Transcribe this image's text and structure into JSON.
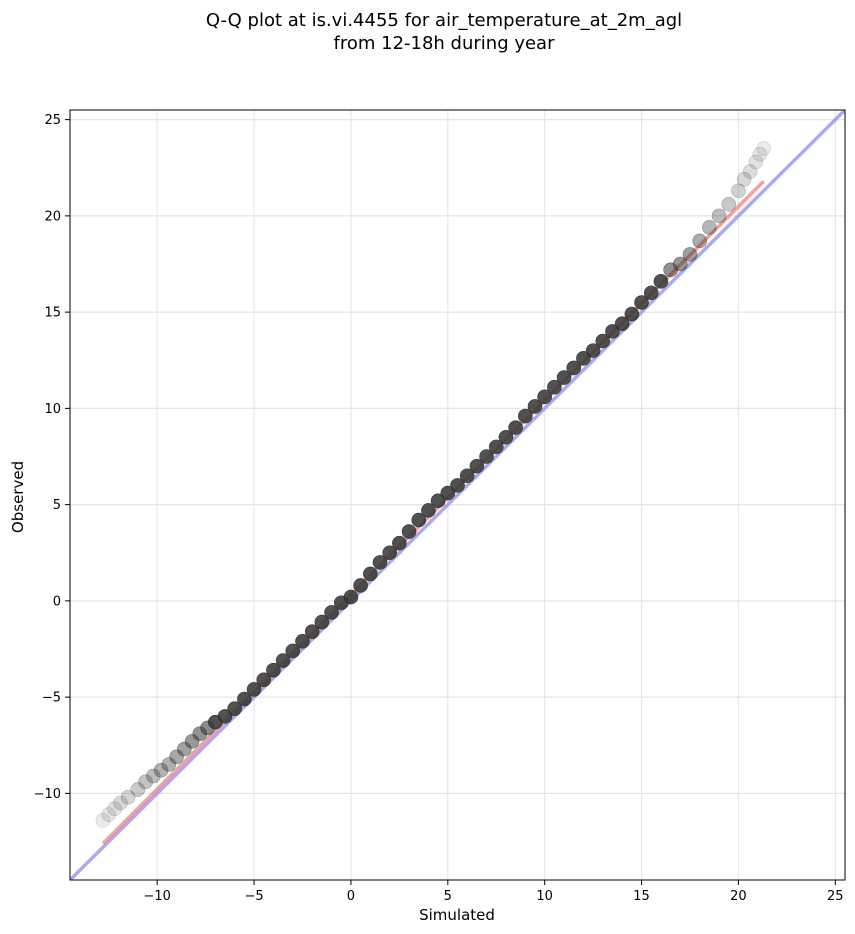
{
  "chart_data": {
    "type": "scatter",
    "title": [
      "Q-Q plot at is.vi.4455 for air_temperature_at_2m_agl",
      "from 12-18h during year"
    ],
    "xlabel": "Simulated",
    "ylabel": "Observed",
    "xlim": [
      -14.5,
      25.5
    ],
    "ylim": [
      -14.5,
      25.5
    ],
    "xticks": [
      -10,
      -5,
      0,
      5,
      10,
      15,
      20,
      25
    ],
    "yticks": [
      -10,
      -5,
      0,
      5,
      10,
      15,
      20,
      25
    ],
    "tick_labels": [
      "−10",
      "−5",
      "0",
      "5",
      "10",
      "15",
      "20",
      "25"
    ],
    "grid": true,
    "colors": {
      "points": "#333333",
      "fit_line": "#f08080",
      "identity_line": "#8c8cf0",
      "grid": "#e6e6e6"
    },
    "lines": [
      {
        "kind": "identity",
        "x": [
          -14.5,
          25.5
        ],
        "y": [
          -14.5,
          25.5
        ]
      },
      {
        "kind": "fit",
        "x": [
          -12.8,
          21.3
        ],
        "y": [
          -12.6,
          21.8
        ]
      }
    ],
    "points": {
      "x": [
        -12.8,
        -12.5,
        -12.2,
        -11.9,
        -11.5,
        -11.0,
        -10.6,
        -10.2,
        -9.8,
        -9.4,
        -9.0,
        -8.6,
        -8.2,
        -7.8,
        -7.4,
        -7.0,
        -6.5,
        -6.0,
        -5.5,
        -5.0,
        -4.5,
        -4.0,
        -3.5,
        -3.0,
        -2.5,
        -2.0,
        -1.5,
        -1.0,
        -0.5,
        0.0,
        0.5,
        1.0,
        1.5,
        2.0,
        2.5,
        3.0,
        3.5,
        4.0,
        4.5,
        5.0,
        5.5,
        6.0,
        6.5,
        7.0,
        7.5,
        8.0,
        8.5,
        9.0,
        9.5,
        10.0,
        10.5,
        11.0,
        11.5,
        12.0,
        12.5,
        13.0,
        13.5,
        14.0,
        14.5,
        15.0,
        15.5,
        16.0,
        16.5,
        17.0,
        17.5,
        18.0,
        18.5,
        19.0,
        19.5,
        20.0,
        20.3,
        20.6,
        20.9,
        21.1,
        21.3
      ],
      "y": [
        -11.4,
        -11.1,
        -10.8,
        -10.5,
        -10.2,
        -9.8,
        -9.4,
        -9.1,
        -8.8,
        -8.5,
        -8.1,
        -7.7,
        -7.3,
        -6.9,
        -6.6,
        -6.3,
        -6.0,
        -5.6,
        -5.1,
        -4.6,
        -4.1,
        -3.6,
        -3.1,
        -2.6,
        -2.1,
        -1.6,
        -1.1,
        -0.6,
        -0.1,
        0.2,
        0.8,
        1.4,
        2.0,
        2.5,
        3.0,
        3.6,
        4.2,
        4.7,
        5.2,
        5.6,
        6.0,
        6.5,
        7.0,
        7.5,
        8.0,
        8.5,
        9.0,
        9.6,
        10.1,
        10.6,
        11.1,
        11.6,
        12.1,
        12.6,
        13.0,
        13.5,
        14.0,
        14.4,
        14.9,
        15.5,
        16.0,
        16.6,
        17.2,
        17.5,
        18.0,
        18.7,
        19.4,
        20.0,
        20.6,
        21.3,
        21.9,
        22.3,
        22.8,
        23.2,
        23.5
      ]
    }
  }
}
